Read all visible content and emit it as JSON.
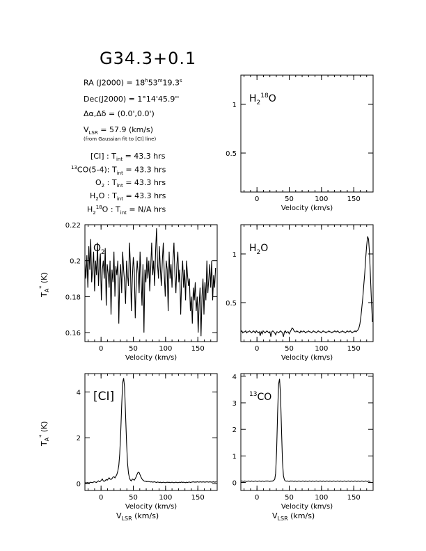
{
  "title": "G34.3+0.1",
  "info": {
    "ra_label": "RA (J2000) = ",
    "ra_h": "18",
    "ra_m": "53",
    "ra_s": "19.3",
    "dec_label": "Dec(J2000) = ",
    "dec_value": "1°14'45.9''",
    "offset": "Δα,Δδ = (0.0',0.0')",
    "vlsr_label": "V",
    "vlsr_sub": "LSR",
    "vlsr_value": " = 57.9 (km/s)",
    "vlsr_note": "(from Gaussian fit to [CI] line)",
    "tint": [
      {
        "pre": "",
        "sup": "",
        "name": "[CI]",
        "sub": "",
        "post": " : T",
        "tsub": "int",
        "value": " = 43.3 hrs"
      },
      {
        "pre": "",
        "sup": "13",
        "name": "CO(5-4)",
        "sub": "",
        "post": ": T",
        "tsub": "int",
        "value": " = 43.3 hrs"
      },
      {
        "pre": "",
        "sup": "",
        "name": "O",
        "sub": "2",
        "post": " : T",
        "tsub": "int",
        "value": " = 43.3 hrs"
      },
      {
        "pre": "",
        "sup": "",
        "name": "H",
        "sub": "2",
        "post": "O : T",
        "tsub": "int",
        "value": " = 43.3 hrs"
      },
      {
        "pre": "H",
        "sub2": "2",
        "sup": "18",
        "name": "O",
        "sub": "",
        "post": " : T",
        "tsub": "int",
        "value": " = N/A hrs"
      }
    ]
  },
  "colors": {
    "line": "#000000",
    "axis": "#000000",
    "background": "#ffffff"
  },
  "chart_data": [
    {
      "id": "h2o18",
      "type": "line",
      "label": "H2 18O",
      "xlim": [
        -25,
        180
      ],
      "ylim": [
        0.1,
        1.3
      ],
      "xticks": [
        0,
        50,
        100,
        150
      ],
      "yticks": [
        0.5,
        1
      ],
      "xlabel": "Velocity (km/s)",
      "ylabel": "",
      "series": []
    },
    {
      "id": "o2",
      "type": "line",
      "label": "O2",
      "xlim": [
        -25,
        180
      ],
      "ylim": [
        0.155,
        0.22
      ],
      "xticks": [
        0,
        50,
        100,
        150
      ],
      "yticks": [
        0.16,
        0.18,
        0.2,
        0.22
      ],
      "ytick_labels": [
        "0.16",
        "0.18",
        "0.2",
        "0.22"
      ],
      "xlabel": "Velocity (km/s)",
      "ylabel": "T_A* (K)",
      "series": [
        {
          "x_start": -25,
          "x_step": 1.5,
          "values": [
            0.198,
            0.19,
            0.203,
            0.185,
            0.208,
            0.195,
            0.212,
            0.188,
            0.196,
            0.205,
            0.183,
            0.2,
            0.192,
            0.21,
            0.186,
            0.199,
            0.204,
            0.178,
            0.195,
            0.2,
            0.19,
            0.207,
            0.175,
            0.198,
            0.193,
            0.185,
            0.2,
            0.17,
            0.195,
            0.188,
            0.205,
            0.18,
            0.197,
            0.192,
            0.2,
            0.165,
            0.19,
            0.198,
            0.182,
            0.205,
            0.195,
            0.188,
            0.176,
            0.2,
            0.192,
            0.186,
            0.21,
            0.198,
            0.172,
            0.19,
            0.202,
            0.195,
            0.168,
            0.188,
            0.2,
            0.193,
            0.182,
            0.205,
            0.19,
            0.175,
            0.198,
            0.16,
            0.195,
            0.188,
            0.202,
            0.19,
            0.2,
            0.183,
            0.196,
            0.21,
            0.192,
            0.2,
            0.186,
            0.205,
            0.218,
            0.198,
            0.19,
            0.208,
            0.195,
            0.186,
            0.2,
            0.21,
            0.192,
            0.18,
            0.2,
            0.195,
            0.172,
            0.205,
            0.19,
            0.198,
            0.185,
            0.2,
            0.21,
            0.192,
            0.182,
            0.198,
            0.205,
            0.188,
            0.195,
            0.17,
            0.19,
            0.2,
            0.185,
            0.195,
            0.178,
            0.2,
            0.192,
            0.186,
            0.19,
            0.172,
            0.18,
            0.165,
            0.185,
            0.178,
            0.188,
            0.172,
            0.18,
            0.16,
            0.175,
            0.185,
            0.158,
            0.18,
            0.19,
            0.17,
            0.188,
            0.178,
            0.2,
            0.182,
            0.19,
            0.198,
            0.185,
            0.2,
            0.178,
            0.192,
            0.185,
            0.196
          ]
        }
      ]
    },
    {
      "id": "h2o",
      "type": "line",
      "label": "H2O",
      "xlim": [
        -25,
        180
      ],
      "ylim": [
        0.1,
        1.3
      ],
      "xticks": [
        0,
        50,
        100,
        150
      ],
      "yticks": [
        0.5,
        1
      ],
      "xlabel": "Velocity (km/s)",
      "ylabel": "",
      "series": [
        {
          "x_start": -25,
          "x_step": 1.5,
          "values": [
            0.2,
            0.21,
            0.19,
            0.2,
            0.2,
            0.21,
            0.19,
            0.2,
            0.2,
            0.21,
            0.2,
            0.19,
            0.2,
            0.21,
            0.2,
            0.19,
            0.21,
            0.2,
            0.19,
            0.2,
            0.16,
            0.2,
            0.18,
            0.21,
            0.2,
            0.19,
            0.2,
            0.21,
            0.2,
            0.19,
            0.2,
            0.15,
            0.2,
            0.21,
            0.2,
            0.19,
            0.17,
            0.2,
            0.2,
            0.19,
            0.2,
            0.21,
            0.2,
            0.19,
            0.15,
            0.2,
            0.21,
            0.19,
            0.2,
            0.2,
            0.18,
            0.2,
            0.22,
            0.24,
            0.23,
            0.21,
            0.2,
            0.2,
            0.21,
            0.2,
            0.2,
            0.19,
            0.21,
            0.2,
            0.2,
            0.21,
            0.2,
            0.19,
            0.2,
            0.2,
            0.21,
            0.2,
            0.2,
            0.19,
            0.2,
            0.21,
            0.2,
            0.2,
            0.19,
            0.2,
            0.21,
            0.2,
            0.2,
            0.19,
            0.2,
            0.21,
            0.2,
            0.2,
            0.19,
            0.2,
            0.2,
            0.21,
            0.2,
            0.2,
            0.19,
            0.2,
            0.2,
            0.21,
            0.2,
            0.2,
            0.21,
            0.2,
            0.19,
            0.2,
            0.2,
            0.21,
            0.2,
            0.2,
            0.19,
            0.2,
            0.21,
            0.2,
            0.2,
            0.21,
            0.2,
            0.19,
            0.2,
            0.2,
            0.21,
            0.2,
            0.21,
            0.22,
            0.24,
            0.28,
            0.35,
            0.45,
            0.55,
            0.68,
            0.8,
            0.95,
            1.08,
            1.18,
            1.15,
            1.0,
            0.75,
            0.5,
            0.3
          ]
        }
      ]
    },
    {
      "id": "ci",
      "type": "line",
      "label": "[CI]",
      "xlim": [
        -25,
        180
      ],
      "ylim": [
        -0.3,
        4.8
      ],
      "xticks": [
        0,
        50,
        100,
        150
      ],
      "yticks": [
        0,
        2,
        4
      ],
      "xlabel": "Velocity (km/s)",
      "ylabel": "T_A* (K)",
      "x_axis_title": "V_LSR (km/s)",
      "series": [
        {
          "x_start": -25,
          "x_step": 1.5,
          "values": [
            0.02,
            0.04,
            0.03,
            0.05,
            0.02,
            0.04,
            0.06,
            0.05,
            0.04,
            0.07,
            0.08,
            0.06,
            0.05,
            0.1,
            0.12,
            0.08,
            0.1,
            0.15,
            0.2,
            0.12,
            0.1,
            0.13,
            0.18,
            0.15,
            0.2,
            0.25,
            0.2,
            0.18,
            0.22,
            0.28,
            0.3,
            0.25,
            0.32,
            0.4,
            0.55,
            0.8,
            1.3,
            2.2,
            3.4,
            4.4,
            4.6,
            4.2,
            3.0,
            1.8,
            0.9,
            0.45,
            0.25,
            0.15,
            0.12,
            0.2,
            0.18,
            0.15,
            0.22,
            0.3,
            0.42,
            0.5,
            0.48,
            0.38,
            0.28,
            0.2,
            0.15,
            0.12,
            0.1,
            0.11,
            0.08,
            0.1,
            0.09,
            0.08,
            0.07,
            0.08,
            0.06,
            0.07,
            0.08,
            0.06,
            0.05,
            0.07,
            0.06,
            0.05,
            0.06,
            0.04,
            0.05,
            0.06,
            0.05,
            0.04,
            0.05,
            0.06,
            0.05,
            0.06,
            0.04,
            0.05,
            0.06,
            0.05,
            0.04,
            0.05,
            0.06,
            0.05,
            0.04,
            0.05,
            0.06,
            0.05,
            0.07,
            0.05,
            0.06,
            0.05,
            0.04,
            0.06,
            0.05,
            0.06,
            0.07,
            0.05,
            0.06,
            0.07,
            0.08,
            0.06,
            0.07,
            0.06,
            0.08,
            0.07,
            0.06,
            0.08,
            0.07,
            0.06,
            0.08,
            0.07,
            0.06,
            0.07,
            0.08,
            0.07,
            0.06,
            0.08,
            0.07,
            0.06,
            0.07,
            0.08,
            0.06,
            0.07,
            0.08
          ]
        }
      ]
    },
    {
      "id": "13co",
      "type": "line",
      "label": "13CO",
      "xlim": [
        -25,
        180
      ],
      "ylim": [
        -0.3,
        4.1
      ],
      "xticks": [
        0,
        50,
        100,
        150
      ],
      "yticks": [
        0,
        1,
        2,
        3,
        4
      ],
      "xlabel": "Velocity (km/s)",
      "ylabel": "",
      "x_axis_title": "V_LSR (km/s)",
      "series": [
        {
          "x_start": -25,
          "x_step": 1.5,
          "values": [
            0.05,
            0.06,
            0.05,
            0.04,
            0.06,
            0.05,
            0.04,
            0.05,
            0.06,
            0.05,
            0.04,
            0.06,
            0.05,
            0.04,
            0.05,
            0.06,
            0.05,
            0.04,
            0.05,
            0.06,
            0.05,
            0.04,
            0.06,
            0.05,
            0.04,
            0.05,
            0.06,
            0.05,
            0.06,
            0.05,
            0.04,
            0.06,
            0.05,
            0.06,
            0.08,
            0.12,
            0.35,
            1.2,
            2.6,
            3.7,
            3.9,
            3.3,
            2.0,
            0.8,
            0.25,
            0.1,
            0.06,
            0.05,
            0.06,
            0.05,
            0.04,
            0.06,
            0.05,
            0.06,
            0.05,
            0.04,
            0.06,
            0.05,
            0.04,
            0.05,
            0.06,
            0.05,
            0.04,
            0.05,
            0.06,
            0.05,
            0.04,
            0.06,
            0.05,
            0.04,
            0.05,
            0.06,
            0.05,
            0.04,
            0.06,
            0.05,
            0.04,
            0.05,
            0.06,
            0.05,
            0.04,
            0.05,
            0.06,
            0.05,
            0.04,
            0.06,
            0.05,
            0.04,
            0.05,
            0.06,
            0.05,
            0.04,
            0.06,
            0.05,
            0.04,
            0.05,
            0.06,
            0.05,
            0.04,
            0.05,
            0.06,
            0.05,
            0.04,
            0.06,
            0.05,
            0.04,
            0.05,
            0.06,
            0.05,
            0.04,
            0.05,
            0.06,
            0.05,
            0.04,
            0.06,
            0.05,
            0.04,
            0.05,
            0.06,
            0.05,
            0.04,
            0.06,
            0.05,
            0.04,
            0.05,
            0.06,
            0.05,
            0.04,
            0.05,
            0.06,
            0.05,
            0.04,
            0.06,
            0.05,
            0.04
          ]
        }
      ]
    }
  ]
}
